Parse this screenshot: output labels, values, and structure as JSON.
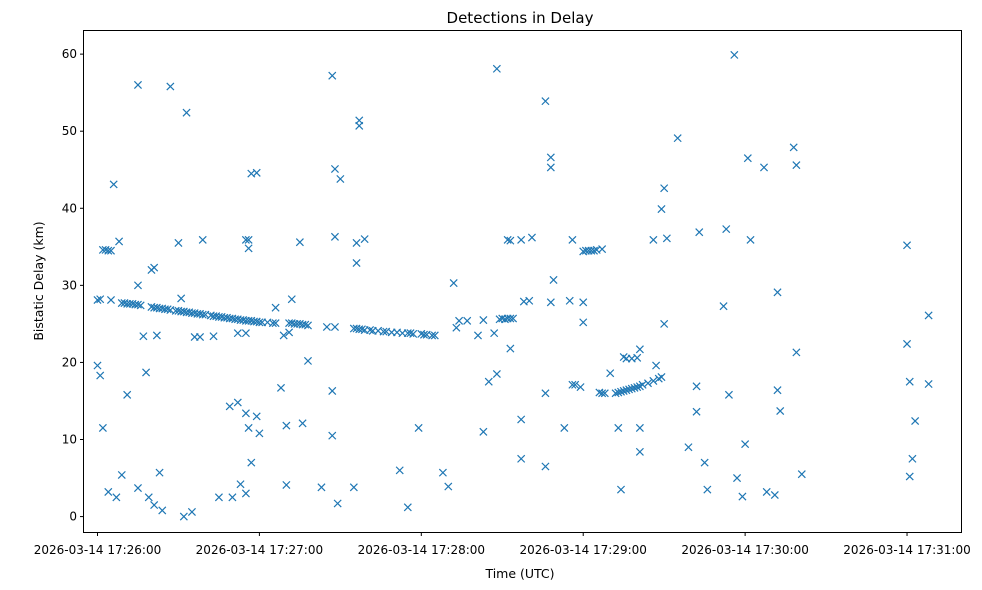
{
  "chart_data": {
    "type": "scatter",
    "title": "Detections in Delay",
    "xlabel": "Time (UTC)",
    "ylabel": "Bistatic Delay (km)",
    "marker": "x",
    "color": "#1f77b4",
    "grid": false,
    "xlim": [
      "2026-03-14 17:25:55",
      "2026-03-14 17:31:20"
    ],
    "ylim": [
      -2,
      63
    ],
    "x_ticks": [
      "2026-03-14 17:26:00",
      "2026-03-14 17:27:00",
      "2026-03-14 17:28:00",
      "2026-03-14 17:29:00",
      "2026-03-14 17:30:00",
      "2026-03-14 17:31:00"
    ],
    "y_ticks": [
      0,
      10,
      20,
      30,
      40,
      50,
      60
    ],
    "points": [
      [
        "17:26:00",
        19.6
      ],
      [
        "17:26:01",
        18.3
      ],
      [
        "17:26:02",
        11.5
      ],
      [
        "17:26:04",
        3.2
      ],
      [
        "17:26:07",
        2.5
      ],
      [
        "17:26:09",
        5.4
      ],
      [
        "17:26:11",
        15.8
      ],
      [
        "17:26:15",
        3.7
      ],
      [
        "17:26:19",
        2.5
      ],
      [
        "17:26:21",
        1.5
      ],
      [
        "17:26:23",
        5.7
      ],
      [
        "17:26:24",
        0.8
      ],
      [
        "17:26:35",
        0.6
      ],
      [
        "17:26:33",
        52.4
      ],
      [
        "17:26:32",
        0.0
      ],
      [
        "17:26:45",
        2.5
      ],
      [
        "17:26:50",
        2.5
      ],
      [
        "17:26:53",
        4.2
      ],
      [
        "17:26:55",
        3.0
      ],
      [
        "17:26:57",
        7.0
      ],
      [
        "17:26:43",
        23.4
      ],
      [
        "17:26:49",
        14.3
      ],
      [
        "17:26:52",
        14.8
      ],
      [
        "17:26:55",
        13.4
      ],
      [
        "17:26:56",
        11.5
      ],
      [
        "17:27:00",
        10.8
      ],
      [
        "17:26:59",
        13.0
      ],
      [
        "17:27:08",
        16.7
      ],
      [
        "17:27:10",
        4.1
      ],
      [
        "17:27:10",
        11.8
      ],
      [
        "17:27:16",
        12.1
      ],
      [
        "17:27:18",
        20.2
      ],
      [
        "17:27:15",
        35.6
      ],
      [
        "17:27:23",
        3.8
      ],
      [
        "17:27:27",
        10.5
      ],
      [
        "17:27:27",
        16.3
      ],
      [
        "17:27:27",
        57.2
      ],
      [
        "17:27:28",
        45.1
      ],
      [
        "17:27:30",
        43.8
      ],
      [
        "17:27:28",
        36.3
      ],
      [
        "17:27:29",
        1.7
      ],
      [
        "17:27:35",
        3.8
      ],
      [
        "17:27:36",
        32.9
      ],
      [
        "17:27:36",
        35.5
      ],
      [
        "17:27:39",
        36.0
      ],
      [
        "17:27:37",
        50.7
      ],
      [
        "17:27:37",
        51.4
      ],
      [
        "17:27:52",
        6.0
      ],
      [
        "17:27:55",
        1.2
      ],
      [
        "17:27:59",
        11.5
      ],
      [
        "17:26:01",
        28.2
      ],
      [
        "17:26:02",
        34.6
      ],
      [
        "17:26:03",
        34.6
      ],
      [
        "17:26:04",
        34.5
      ],
      [
        "17:26:05",
        34.5
      ],
      [
        "17:26:05",
        28.1
      ],
      [
        "17:26:06",
        43.1
      ],
      [
        "17:26:08",
        35.7
      ],
      [
        "17:26:15",
        56.0
      ],
      [
        "17:26:15",
        30.0
      ],
      [
        "17:26:18",
        18.7
      ],
      [
        "17:26:17",
        23.4
      ],
      [
        "17:26:22",
        23.5
      ],
      [
        "17:26:21",
        32.3
      ],
      [
        "17:26:20",
        32.0
      ],
      [
        "17:26:27",
        55.8
      ],
      [
        "17:26:30",
        35.5
      ],
      [
        "17:26:31",
        28.3
      ],
      [
        "17:26:36",
        23.3
      ],
      [
        "17:26:38",
        23.3
      ],
      [
        "17:26:39",
        35.9
      ],
      [
        "17:26:52",
        23.8
      ],
      [
        "17:26:55",
        23.8
      ],
      [
        "17:26:55",
        35.9
      ],
      [
        "17:26:56",
        35.9
      ],
      [
        "17:26:56",
        34.8
      ],
      [
        "17:26:57",
        44.5
      ],
      [
        "17:26:59",
        44.6
      ],
      [
        "17:27:06",
        27.1
      ],
      [
        "17:27:12",
        28.2
      ],
      [
        "17:27:11",
        23.9
      ],
      [
        "17:27:09",
        23.5
      ],
      [
        "17:27:25",
        24.6
      ],
      [
        "17:27:28",
        24.6
      ],
      [
        "17:27:55",
        23.8
      ],
      [
        "17:26:00",
        28.1
      ],
      [
        "17:26:09",
        27.7
      ],
      [
        "17:26:10",
        27.7
      ],
      [
        "17:26:11",
        27.6
      ],
      [
        "17:26:12",
        27.6
      ],
      [
        "17:26:13",
        27.6
      ],
      [
        "17:26:14",
        27.5
      ],
      [
        "17:26:15",
        27.5
      ],
      [
        "17:26:16",
        27.4
      ],
      [
        "17:26:20",
        27.2
      ],
      [
        "17:26:21",
        27.1
      ],
      [
        "17:26:22",
        27.1
      ],
      [
        "17:26:23",
        27.0
      ],
      [
        "17:26:24",
        27.0
      ],
      [
        "17:26:25",
        26.9
      ],
      [
        "17:26:26",
        26.9
      ],
      [
        "17:26:27",
        26.8
      ],
      [
        "17:26:29",
        26.7
      ],
      [
        "17:26:30",
        26.7
      ],
      [
        "17:26:31",
        26.6
      ],
      [
        "17:26:32",
        26.6
      ],
      [
        "17:26:33",
        26.5
      ],
      [
        "17:26:34",
        26.5
      ],
      [
        "17:26:35",
        26.4
      ],
      [
        "17:26:36",
        26.4
      ],
      [
        "17:26:37",
        26.3
      ],
      [
        "17:26:38",
        26.3
      ],
      [
        "17:26:39",
        26.2
      ],
      [
        "17:26:40",
        26.2
      ],
      [
        "17:26:42",
        26.1
      ],
      [
        "17:26:43",
        26.0
      ],
      [
        "17:26:44",
        26.0
      ],
      [
        "17:26:45",
        25.9
      ],
      [
        "17:26:46",
        25.9
      ],
      [
        "17:26:47",
        25.8
      ],
      [
        "17:26:48",
        25.8
      ],
      [
        "17:26:49",
        25.7
      ],
      [
        "17:26:50",
        25.7
      ],
      [
        "17:26:51",
        25.6
      ],
      [
        "17:26:52",
        25.6
      ],
      [
        "17:26:53",
        25.5
      ],
      [
        "17:26:54",
        25.5
      ],
      [
        "17:26:55",
        25.4
      ],
      [
        "17:26:56",
        25.4
      ],
      [
        "17:26:57",
        25.4
      ],
      [
        "17:26:58",
        25.3
      ],
      [
        "17:26:59",
        25.3
      ],
      [
        "17:27:00",
        25.2
      ],
      [
        "17:27:01",
        25.2
      ],
      [
        "17:27:03",
        25.2
      ],
      [
        "17:27:05",
        25.1
      ],
      [
        "17:27:06",
        25.1
      ],
      [
        "17:27:11",
        25.1
      ],
      [
        "17:27:12",
        25.1
      ],
      [
        "17:27:13",
        25.0
      ],
      [
        "17:27:14",
        25.0
      ],
      [
        "17:27:15",
        25.0
      ],
      [
        "17:27:16",
        24.9
      ],
      [
        "17:27:17",
        24.9
      ],
      [
        "17:27:18",
        24.8
      ],
      [
        "17:27:35",
        24.4
      ],
      [
        "17:27:36",
        24.4
      ],
      [
        "17:27:37",
        24.3
      ],
      [
        "17:27:38",
        24.3
      ],
      [
        "17:27:39",
        24.2
      ],
      [
        "17:27:41",
        24.2
      ],
      [
        "17:27:42",
        24.1
      ],
      [
        "17:27:44",
        24.1
      ],
      [
        "17:27:46",
        24.0
      ],
      [
        "17:27:47",
        24.0
      ],
      [
        "17:27:49",
        23.9
      ],
      [
        "17:27:51",
        23.9
      ],
      [
        "17:27:53",
        23.8
      ],
      [
        "17:27:56",
        23.8
      ],
      [
        "17:27:57",
        23.7
      ],
      [
        "17:28:00",
        23.7
      ],
      [
        "17:28:01",
        23.6
      ],
      [
        "17:28:02",
        23.6
      ],
      [
        "17:28:04",
        23.5
      ],
      [
        "17:28:05",
        23.5
      ],
      [
        "17:28:08",
        5.7
      ],
      [
        "17:28:10",
        3.9
      ],
      [
        "17:28:12",
        30.3
      ],
      [
        "17:28:13",
        24.5
      ],
      [
        "17:28:14",
        25.4
      ],
      [
        "17:28:17",
        25.4
      ],
      [
        "17:28:21",
        23.5
      ],
      [
        "17:28:23",
        11.0
      ],
      [
        "17:28:23",
        25.5
      ],
      [
        "17:28:25",
        17.5
      ],
      [
        "17:28:27",
        23.8
      ],
      [
        "17:28:28",
        18.5
      ],
      [
        "17:28:29",
        25.6
      ],
      [
        "17:28:30",
        25.7
      ],
      [
        "17:28:31",
        25.6
      ],
      [
        "17:28:32",
        25.7
      ],
      [
        "17:28:33",
        25.7
      ],
      [
        "17:28:34",
        25.7
      ],
      [
        "17:28:32",
        35.9
      ],
      [
        "17:28:33",
        35.8
      ],
      [
        "17:28:33",
        21.8
      ],
      [
        "17:28:28",
        58.1
      ],
      [
        "17:28:37",
        35.9
      ],
      [
        "17:28:37",
        12.6
      ],
      [
        "17:28:37",
        7.5
      ],
      [
        "17:28:38",
        27.9
      ],
      [
        "17:28:40",
        28.0
      ],
      [
        "17:28:41",
        36.2
      ],
      [
        "17:28:46",
        16.0
      ],
      [
        "17:28:46",
        6.5
      ],
      [
        "17:28:46",
        53.9
      ],
      [
        "17:28:48",
        27.8
      ],
      [
        "17:28:48",
        45.3
      ],
      [
        "17:28:48",
        46.6
      ],
      [
        "17:28:49",
        30.7
      ],
      [
        "17:28:53",
        11.5
      ],
      [
        "17:28:55",
        28.0
      ],
      [
        "17:28:56",
        17.1
      ],
      [
        "17:28:57",
        17.1
      ],
      [
        "17:28:56",
        35.9
      ],
      [
        "17:28:59",
        16.8
      ],
      [
        "17:29:00",
        25.2
      ],
      [
        "17:29:00",
        27.8
      ],
      [
        "17:29:00",
        34.4
      ],
      [
        "17:29:01",
        34.5
      ],
      [
        "17:29:02",
        34.5
      ],
      [
        "17:29:03",
        34.5
      ],
      [
        "17:29:04",
        34.5
      ],
      [
        "17:29:05",
        34.6
      ],
      [
        "17:29:07",
        34.7
      ],
      [
        "17:29:06",
        16.1
      ],
      [
        "17:29:07",
        16.0
      ],
      [
        "17:29:08",
        16.0
      ],
      [
        "17:29:10",
        18.6
      ],
      [
        "17:29:12",
        16.0
      ],
      [
        "17:29:13",
        16.1
      ],
      [
        "17:29:14",
        16.2
      ],
      [
        "17:29:15",
        16.3
      ],
      [
        "17:29:16",
        16.4
      ],
      [
        "17:29:17",
        16.5
      ],
      [
        "17:29:18",
        16.6
      ],
      [
        "17:29:19",
        16.7
      ],
      [
        "17:29:20",
        16.8
      ],
      [
        "17:29:21",
        16.9
      ],
      [
        "17:29:22",
        17.1
      ],
      [
        "17:29:24",
        17.3
      ],
      [
        "17:29:26",
        17.6
      ],
      [
        "17:29:28",
        17.9
      ],
      [
        "17:29:29",
        18.1
      ],
      [
        "17:29:27",
        19.6
      ],
      [
        "17:29:15",
        20.7
      ],
      [
        "17:29:16",
        20.5
      ],
      [
        "17:29:18",
        20.5
      ],
      [
        "17:29:20",
        20.6
      ],
      [
        "17:29:21",
        21.7
      ],
      [
        "17:29:13",
        11.5
      ],
      [
        "17:29:21",
        11.5
      ],
      [
        "17:29:21",
        8.4
      ],
      [
        "17:29:14",
        3.5
      ],
      [
        "17:29:26",
        35.9
      ],
      [
        "17:29:29",
        39.9
      ],
      [
        "17:29:30",
        42.6
      ],
      [
        "17:29:31",
        36.1
      ],
      [
        "17:29:30",
        25.0
      ],
      [
        "17:29:35",
        49.1
      ],
      [
        "17:29:39",
        9.0
      ],
      [
        "17:29:42",
        16.9
      ],
      [
        "17:29:42",
        13.6
      ],
      [
        "17:29:43",
        36.9
      ],
      [
        "17:29:45",
        7.0
      ],
      [
        "17:29:46",
        3.5
      ],
      [
        "17:29:52",
        27.3
      ],
      [
        "17:29:53",
        37.3
      ],
      [
        "17:29:54",
        15.8
      ],
      [
        "17:29:56",
        59.9
      ],
      [
        "17:29:57",
        5.0
      ],
      [
        "17:29:59",
        2.6
      ],
      [
        "17:30:00",
        9.4
      ],
      [
        "17:30:01",
        46.5
      ],
      [
        "17:30:02",
        35.9
      ],
      [
        "17:30:07",
        45.3
      ],
      [
        "17:30:08",
        3.2
      ],
      [
        "17:30:11",
        2.8
      ],
      [
        "17:30:12",
        16.4
      ],
      [
        "17:30:12",
        29.1
      ],
      [
        "17:30:13",
        13.7
      ],
      [
        "17:30:18",
        47.9
      ],
      [
        "17:30:19",
        45.6
      ],
      [
        "17:30:19",
        21.3
      ],
      [
        "17:30:21",
        5.5
      ],
      [
        "17:31:00",
        22.4
      ],
      [
        "17:31:00",
        35.2
      ],
      [
        "17:31:01",
        17.5
      ],
      [
        "17:31:01",
        5.2
      ],
      [
        "17:31:02",
        7.5
      ],
      [
        "17:31:03",
        12.4
      ],
      [
        "17:31:08",
        26.1
      ],
      [
        "17:31:08",
        17.2
      ]
    ],
    "date": "2026-03-14"
  }
}
